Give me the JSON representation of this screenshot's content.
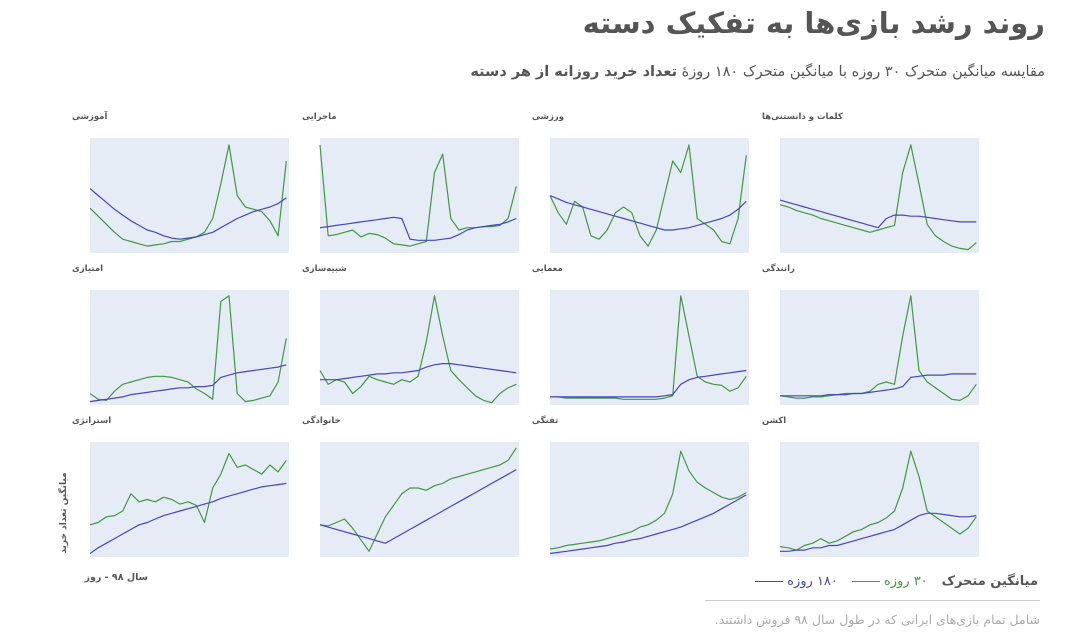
{
  "title": "روند رشد بازی‌ها به تفکیک دسته",
  "subtitle": "مقایسه میانگین متحرک ۳۰ روزه با میانگین متحرک ۱۸۰ روزهٔ",
  "subtitle_bold": "تعداد خرید روزانه از هر دسته",
  "y_axis_label": "میانگین تعداد خرید",
  "x_axis_label": "سال ۹۸ - روز",
  "legend_title": "میانگین متحرک",
  "footnote": "شامل تمام بازی‌های ایرانی که در طول سال ۹۸ فروش داشتند.",
  "chart_data": [
    {
      "type": "line",
      "title": "کلمات و دانستنی‌ها",
      "x": [
        0,
        15,
        30,
        45,
        60,
        75,
        90,
        105,
        120,
        135,
        150,
        165,
        180,
        195,
        210,
        225,
        240,
        255,
        270,
        285,
        300,
        315,
        330,
        345,
        360
      ],
      "xlim": [
        0,
        365
      ],
      "ylim": [
        0,
        100
      ],
      "series": [
        {
          "name": "۳۰ روزه",
          "color": "#3f9a3f",
          "values": [
            42,
            40,
            37,
            35,
            33,
            30,
            28,
            26,
            24,
            22,
            20,
            18,
            20,
            22,
            24,
            70,
            94,
            60,
            25,
            15,
            10,
            6,
            4,
            3,
            9
          ]
        },
        {
          "name": "۱۸۰ روزه",
          "color": "#4545c8",
          "values": [
            46,
            44,
            42,
            40,
            38,
            36,
            34,
            32,
            30,
            28,
            26,
            24,
            22,
            30,
            33,
            33,
            32,
            32,
            31,
            30,
            29,
            28,
            27,
            27,
            27
          ]
        }
      ]
    },
    {
      "type": "line",
      "title": "ورزشی",
      "x": [
        0,
        15,
        30,
        45,
        60,
        75,
        90,
        105,
        120,
        135,
        150,
        165,
        180,
        195,
        210,
        225,
        240,
        255,
        270,
        285,
        300,
        315,
        330,
        345,
        360
      ],
      "xlim": [
        0,
        365
      ],
      "ylim": [
        0,
        100
      ],
      "series": [
        {
          "name": "۳۰ روزه",
          "color": "#3f9a3f",
          "values": [
            50,
            35,
            25,
            45,
            40,
            15,
            12,
            20,
            35,
            40,
            35,
            15,
            6,
            20,
            50,
            80,
            70,
            94,
            30,
            25,
            20,
            10,
            8,
            30,
            85
          ]
        },
        {
          "name": "۱۸۰ روزه",
          "color": "#4545c8",
          "values": [
            50,
            47,
            44,
            42,
            40,
            38,
            36,
            34,
            32,
            30,
            28,
            26,
            24,
            22,
            20,
            20,
            21,
            22,
            24,
            26,
            28,
            30,
            33,
            38,
            45
          ]
        }
      ]
    },
    {
      "type": "line",
      "title": "ماجرایی",
      "x": [
        0,
        15,
        30,
        45,
        60,
        75,
        90,
        105,
        120,
        135,
        150,
        165,
        180,
        195,
        210,
        225,
        240,
        255,
        270,
        285,
        300,
        315,
        330,
        345,
        360
      ],
      "xlim": [
        0,
        365
      ],
      "ylim": [
        0,
        100
      ],
      "series": [
        {
          "name": "۳۰ روزه",
          "color": "#3f9a3f",
          "values": [
            94,
            15,
            16,
            18,
            20,
            14,
            17,
            16,
            13,
            8,
            7,
            6,
            8,
            10,
            70,
            86,
            30,
            20,
            22,
            22,
            23,
            23,
            24,
            30,
            58
          ]
        },
        {
          "name": "۱۸۰ روزه",
          "color": "#4545c8",
          "values": [
            22,
            23,
            24,
            25,
            26,
            27,
            28,
            29,
            30,
            31,
            30,
            12,
            11,
            11,
            11,
            12,
            13,
            16,
            20,
            22,
            23,
            24,
            25,
            27,
            30
          ]
        }
      ]
    },
    {
      "type": "line",
      "title": "آموزشی",
      "x": [
        0,
        15,
        30,
        45,
        60,
        75,
        90,
        105,
        120,
        135,
        150,
        165,
        180,
        195,
        210,
        225,
        240,
        255,
        270,
        285,
        300,
        315,
        330,
        345,
        360
      ],
      "xlim": [
        0,
        365
      ],
      "ylim": [
        0,
        100
      ],
      "series": [
        {
          "name": "۳۰ روزه",
          "color": "#3f9a3f",
          "values": [
            39,
            32,
            25,
            18,
            12,
            10,
            8,
            6,
            7,
            8,
            10,
            10,
            12,
            14,
            18,
            30,
            60,
            94,
            50,
            40,
            38,
            36,
            28,
            15,
            80
          ]
        },
        {
          "name": "۱۸۰ روزه",
          "color": "#4545c8",
          "values": [
            56,
            50,
            44,
            38,
            33,
            28,
            24,
            20,
            18,
            15,
            13,
            12,
            13,
            14,
            16,
            18,
            22,
            26,
            30,
            33,
            36,
            38,
            40,
            43,
            48
          ]
        }
      ]
    },
    {
      "type": "line",
      "title": "رانندگی",
      "x": [
        0,
        15,
        30,
        45,
        60,
        75,
        90,
        105,
        120,
        135,
        150,
        165,
        180,
        195,
        210,
        225,
        240,
        255,
        270,
        285,
        300,
        315,
        330,
        345,
        360
      ],
      "xlim": [
        0,
        365
      ],
      "ylim": [
        0,
        100
      ],
      "series": [
        {
          "name": "۳۰ روزه",
          "color": "#3f9a3f",
          "values": [
            8,
            7,
            6,
            6,
            7,
            7,
            8,
            9,
            10,
            10,
            10,
            12,
            18,
            20,
            18,
            60,
            95,
            30,
            20,
            15,
            10,
            5,
            4,
            8,
            18
          ]
        },
        {
          "name": "۱۸۰ روزه",
          "color": "#4545c8",
          "values": [
            8,
            8,
            8,
            8,
            8,
            8,
            9,
            9,
            9,
            10,
            10,
            11,
            12,
            13,
            14,
            16,
            24,
            25,
            26,
            26,
            26,
            27,
            27,
            27,
            27
          ]
        }
      ]
    },
    {
      "type": "line",
      "title": "معمایی",
      "x": [
        0,
        15,
        30,
        45,
        60,
        75,
        90,
        105,
        120,
        135,
        150,
        165,
        180,
        195,
        210,
        225,
        240,
        255,
        270,
        285,
        300,
        315,
        330,
        345,
        360
      ],
      "xlim": [
        0,
        365
      ],
      "ylim": [
        0,
        100
      ],
      "series": [
        {
          "name": "۳۰ روزه",
          "color": "#3f9a3f",
          "values": [
            7,
            7,
            6,
            6,
            6,
            6,
            6,
            6,
            6,
            5,
            5,
            5,
            5,
            5,
            6,
            8,
            95,
            60,
            25,
            20,
            18,
            17,
            12,
            15,
            25
          ]
        },
        {
          "name": "۱۸۰ روزه",
          "color": "#4545c8",
          "values": [
            7,
            7,
            7,
            7,
            7,
            7,
            7,
            7,
            7,
            7,
            7,
            7,
            7,
            7,
            8,
            9,
            18,
            22,
            24,
            25,
            26,
            27,
            28,
            29,
            30
          ]
        }
      ]
    },
    {
      "type": "line",
      "title": "شبیه‌سازی",
      "x": [
        0,
        15,
        30,
        45,
        60,
        75,
        90,
        105,
        120,
        135,
        150,
        165,
        180,
        195,
        210,
        225,
        240,
        255,
        270,
        285,
        300,
        315,
        330,
        345,
        360
      ],
      "xlim": [
        0,
        365
      ],
      "ylim": [
        0,
        100
      ],
      "series": [
        {
          "name": "۳۰ روزه",
          "color": "#3f9a3f",
          "values": [
            30,
            18,
            22,
            20,
            10,
            16,
            25,
            22,
            20,
            18,
            22,
            20,
            25,
            55,
            95,
            60,
            30,
            22,
            15,
            8,
            4,
            2,
            10,
            15,
            18
          ]
        },
        {
          "name": "۱۸۰ روزه",
          "color": "#4545c8",
          "values": [
            22,
            22,
            22,
            23,
            24,
            25,
            26,
            27,
            27,
            28,
            28,
            29,
            30,
            33,
            35,
            36,
            36,
            35,
            34,
            33,
            32,
            31,
            30,
            29,
            28
          ]
        }
      ]
    },
    {
      "type": "line",
      "title": "امتیازی",
      "x": [
        0,
        15,
        30,
        45,
        60,
        75,
        90,
        105,
        120,
        135,
        150,
        165,
        180,
        195,
        210,
        225,
        240,
        255,
        270,
        285,
        300,
        315,
        330,
        345,
        360
      ],
      "xlim": [
        0,
        365
      ],
      "ylim": [
        0,
        100
      ],
      "series": [
        {
          "name": "۳۰ روزه",
          "color": "#3f9a3f",
          "values": [
            10,
            5,
            4,
            12,
            18,
            20,
            22,
            24,
            25,
            25,
            24,
            22,
            20,
            14,
            10,
            5,
            90,
            95,
            10,
            3,
            4,
            6,
            8,
            20,
            58
          ]
        },
        {
          "name": "۱۸۰ روزه",
          "color": "#4545c8",
          "values": [
            3,
            4,
            5,
            6,
            7,
            9,
            10,
            11,
            12,
            13,
            14,
            15,
            15,
            16,
            16,
            17,
            24,
            26,
            28,
            29,
            30,
            31,
            32,
            33,
            35
          ]
        }
      ]
    },
    {
      "type": "line",
      "title": "اکشن",
      "x": [
        0,
        15,
        30,
        45,
        60,
        75,
        90,
        105,
        120,
        135,
        150,
        165,
        180,
        195,
        210,
        225,
        240,
        255,
        270,
        285,
        300,
        315,
        330,
        345,
        360
      ],
      "xlim": [
        0,
        365
      ],
      "ylim": [
        0,
        100
      ],
      "series": [
        {
          "name": "۳۰ روزه",
          "color": "#3f9a3f",
          "values": [
            9,
            8,
            6,
            10,
            12,
            16,
            12,
            14,
            18,
            22,
            24,
            28,
            30,
            34,
            40,
            60,
            92,
            70,
            40,
            35,
            30,
            25,
            20,
            25,
            35
          ]
        },
        {
          "name": "۱۸۰ روزه",
          "color": "#4545c8",
          "values": [
            5,
            5,
            6,
            6,
            8,
            8,
            10,
            10,
            12,
            14,
            16,
            18,
            20,
            22,
            24,
            28,
            32,
            36,
            38,
            38,
            37,
            36,
            35,
            35,
            36
          ]
        }
      ]
    },
    {
      "type": "line",
      "title": "تفنگی",
      "x": [
        0,
        15,
        30,
        45,
        60,
        75,
        90,
        105,
        120,
        135,
        150,
        165,
        180,
        195,
        210,
        225,
        240,
        255,
        270,
        285,
        300,
        315,
        330,
        345,
        360
      ],
      "xlim": [
        0,
        365
      ],
      "ylim": [
        0,
        100
      ],
      "series": [
        {
          "name": "۳۰ روزه",
          "color": "#3f9a3f",
          "values": [
            7,
            8,
            10,
            11,
            12,
            13,
            14,
            16,
            18,
            20,
            22,
            26,
            28,
            32,
            38,
            55,
            92,
            75,
            65,
            60,
            56,
            52,
            50,
            52,
            56
          ]
        },
        {
          "name": "۱۸۰ روزه",
          "color": "#4545c8",
          "values": [
            3,
            4,
            5,
            6,
            7,
            8,
            9,
            10,
            12,
            13,
            15,
            16,
            18,
            20,
            22,
            24,
            26,
            29,
            32,
            35,
            38,
            42,
            46,
            50,
            54
          ]
        }
      ]
    },
    {
      "type": "line",
      "title": "خانوادگی",
      "x": [
        0,
        15,
        30,
        45,
        60,
        75,
        90,
        105,
        120,
        135,
        150,
        165,
        180,
        195,
        210,
        225,
        240,
        255,
        270,
        285,
        300,
        315,
        330,
        345,
        360
      ],
      "xlim": [
        0,
        365
      ],
      "ylim": [
        0,
        100
      ],
      "series": [
        {
          "name": "۳۰ روزه",
          "color": "#3f9a3f",
          "values": [
            28,
            27,
            30,
            33,
            25,
            15,
            5,
            20,
            35,
            45,
            55,
            60,
            60,
            58,
            62,
            64,
            68,
            70,
            72,
            74,
            76,
            78,
            80,
            84,
            95
          ]
        },
        {
          "name": "۱۸۰ روزه",
          "color": "#4545c8",
          "values": [
            28,
            26,
            24,
            22,
            20,
            18,
            16,
            14,
            12,
            16,
            20,
            24,
            28,
            32,
            36,
            40,
            44,
            48,
            52,
            56,
            60,
            64,
            68,
            72,
            76
          ]
        }
      ]
    },
    {
      "type": "line",
      "title": "استراتژی",
      "x": [
        0,
        15,
        30,
        45,
        60,
        75,
        90,
        105,
        120,
        135,
        150,
        165,
        180,
        195,
        210,
        225,
        240,
        255,
        270,
        285,
        300,
        315,
        330,
        345,
        360
      ],
      "xlim": [
        0,
        365
      ],
      "ylim": [
        0,
        100
      ],
      "series": [
        {
          "name": "۳۰ روزه",
          "color": "#3f9a3f",
          "values": [
            28,
            30,
            35,
            36,
            40,
            55,
            48,
            50,
            48,
            52,
            50,
            46,
            48,
            45,
            30,
            60,
            72,
            90,
            78,
            80,
            76,
            72,
            80,
            74,
            84
          ]
        },
        {
          "name": "۱۸۰ روزه",
          "color": "#4545c8",
          "values": [
            3,
            8,
            12,
            16,
            20,
            24,
            28,
            30,
            33,
            36,
            38,
            40,
            42,
            44,
            46,
            48,
            51,
            53,
            55,
            57,
            59,
            61,
            62,
            63,
            64
          ]
        }
      ]
    }
  ]
}
